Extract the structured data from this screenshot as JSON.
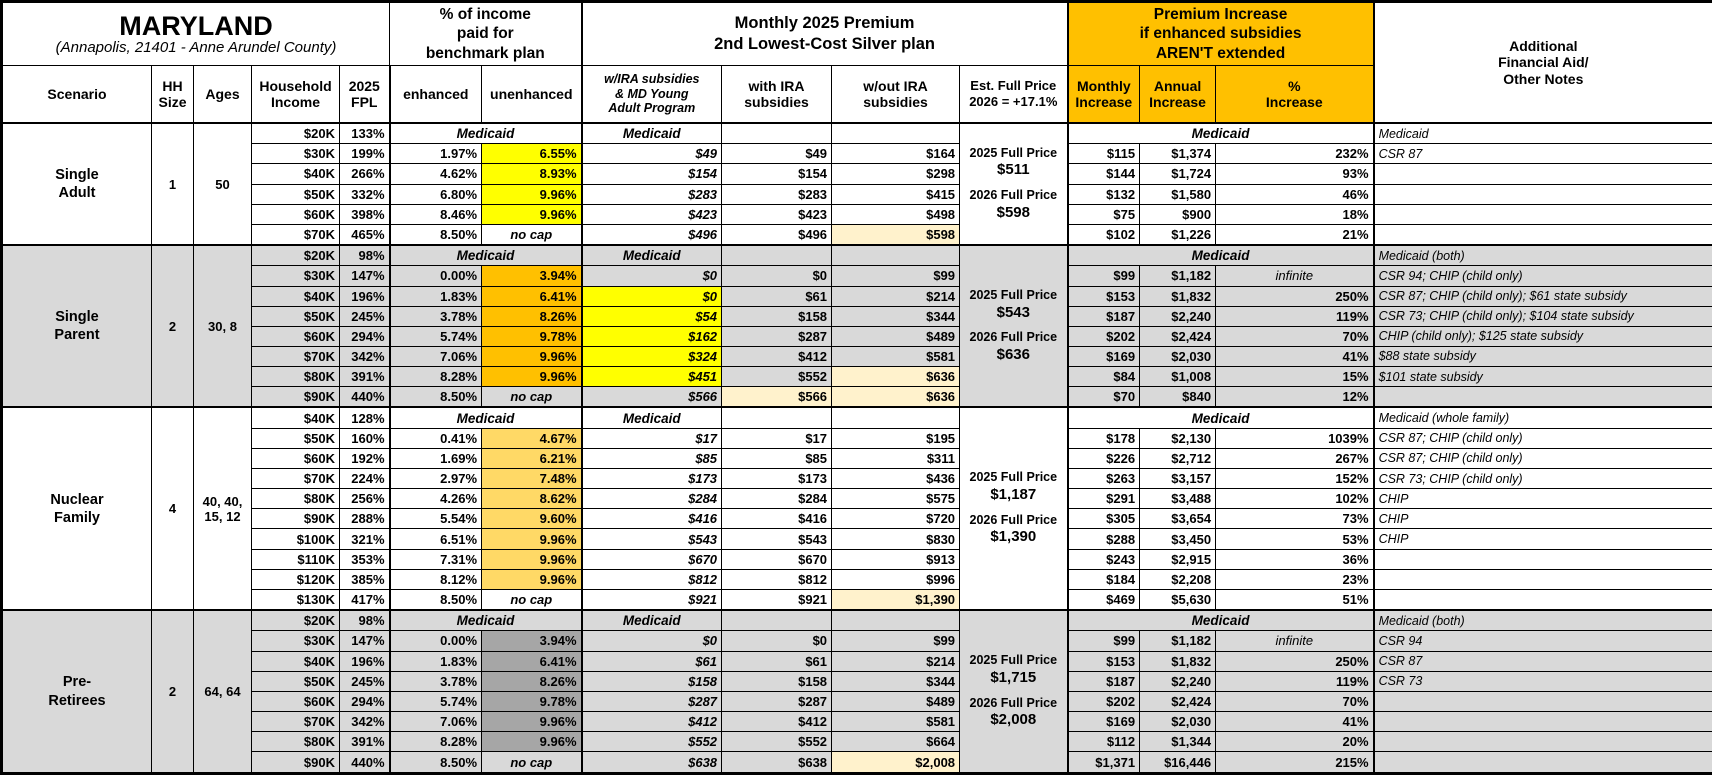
{
  "header": {
    "title": "MARYLAND",
    "subtitle": "(Annapolis, 21401 - Anne Arundel County)",
    "group_income_pct": "% of income\npaid for\nbenchmark plan",
    "group_premium": "Monthly 2025 Premium\n2nd Lowest-Cost Silver plan",
    "group_increase": "Premium Increase\nif enhanced subsidies\nAREN'T extended",
    "group_notes": "Additional\nFinancial Aid/\nOther Notes"
  },
  "columns": {
    "scenario": "Scenario",
    "hh_size": "HH\nSize",
    "ages": "Ages",
    "income": "Household\nIncome",
    "fpl": "2025\nFPL",
    "enhanced": "enhanced",
    "unenhanced": "unenhanced",
    "wira": "w/IRA subsidies\n& MD Young\nAdult Program",
    "withira": "with IRA\nsubsidies",
    "woutira": "w/out IRA\nsubsidies",
    "est": "Est. Full Price\n2026 = +17.1%",
    "monthly": "Monthly\nIncrease",
    "annual": "Annual\nIncrease",
    "pct": "%\nIncrease"
  },
  "labels": {
    "medicaid": "Medicaid"
  },
  "colors": {
    "header_orange": "#FFC000",
    "row_gray": "#D9D9D9",
    "yellow": "#FFFF00",
    "gold": "#FFC000",
    "light_gold": "#FFD966",
    "dark_gray": "#A6A6A6",
    "beige": "#FFF2CC"
  },
  "blocks": [
    {
      "scenario": "Single\nAdult",
      "hh_size": "1",
      "ages": "50",
      "gray": false,
      "unenhanced_color": "#FFFF00",
      "full_price": {
        "label_2025": "2025 Full Price",
        "price_2025": "$511",
        "label_2026": "2026 Full Price",
        "price_2026": "$598"
      },
      "rows": [
        {
          "income": "$20K",
          "fpl": "133%",
          "medicaid": true,
          "note": "Medicaid"
        },
        {
          "income": "$30K",
          "fpl": "199%",
          "enhanced": "1.97%",
          "unenhanced": "6.55%",
          "u_hl": true,
          "wira": "$49",
          "withira": "$49",
          "woutira": "$164",
          "monthly": "$115",
          "annual": "$1,374",
          "pct": "232%",
          "note": "CSR 87"
        },
        {
          "income": "$40K",
          "fpl": "266%",
          "enhanced": "4.62%",
          "unenhanced": "8.93%",
          "u_hl": true,
          "wira": "$154",
          "withira": "$154",
          "woutira": "$298",
          "monthly": "$144",
          "annual": "$1,724",
          "pct": "93%",
          "note": ""
        },
        {
          "income": "$50K",
          "fpl": "332%",
          "enhanced": "6.80%",
          "unenhanced": "9.96%",
          "u_hl": true,
          "wira": "$283",
          "withira": "$283",
          "woutira": "$415",
          "monthly": "$132",
          "annual": "$1,580",
          "pct": "46%",
          "note": ""
        },
        {
          "income": "$60K",
          "fpl": "398%",
          "enhanced": "8.46%",
          "unenhanced": "9.96%",
          "u_hl": true,
          "wira": "$423",
          "withira": "$423",
          "woutira": "$498",
          "monthly": "$75",
          "annual": "$900",
          "pct": "18%",
          "note": ""
        },
        {
          "income": "$70K",
          "fpl": "465%",
          "enhanced": "8.50%",
          "unenhanced": "no cap",
          "wira": "$496",
          "withira": "$496",
          "woutira": "$598",
          "woutira_hl": true,
          "monthly": "$102",
          "annual": "$1,226",
          "pct": "21%",
          "note": ""
        }
      ]
    },
    {
      "scenario": "Single\nParent",
      "hh_size": "2",
      "ages": "30, 8",
      "gray": true,
      "unenhanced_color": "#FFC000",
      "full_price": {
        "label_2025": "2025 Full Price",
        "price_2025": "$543",
        "label_2026": "2026 Full Price",
        "price_2026": "$636"
      },
      "rows": [
        {
          "income": "$20K",
          "fpl": "98%",
          "medicaid": true,
          "note": "Medicaid (both)"
        },
        {
          "income": "$30K",
          "fpl": "147%",
          "enhanced": "0.00%",
          "unenhanced": "3.94%",
          "u_hl": true,
          "wira": "$0",
          "withira": "$0",
          "woutira": "$99",
          "monthly": "$99",
          "annual": "$1,182",
          "pct": "infinite",
          "note": "CSR 94; CHIP (child only)"
        },
        {
          "income": "$40K",
          "fpl": "196%",
          "enhanced": "1.83%",
          "unenhanced": "6.41%",
          "u_hl": true,
          "wira": "$0",
          "wira_hl": true,
          "withira": "$61",
          "woutira": "$214",
          "monthly": "$153",
          "annual": "$1,832",
          "pct": "250%",
          "note": "CSR 87; CHIP (child only); $61 state subsidy"
        },
        {
          "income": "$50K",
          "fpl": "245%",
          "enhanced": "3.78%",
          "unenhanced": "8.26%",
          "u_hl": true,
          "wira": "$54",
          "wira_hl": true,
          "withira": "$158",
          "woutira": "$344",
          "monthly": "$187",
          "annual": "$2,240",
          "pct": "119%",
          "note": "CSR 73; CHIP (child only); $104 state subsidy"
        },
        {
          "income": "$60K",
          "fpl": "294%",
          "enhanced": "5.74%",
          "unenhanced": "9.78%",
          "u_hl": true,
          "wira": "$162",
          "wira_hl": true,
          "withira": "$287",
          "woutira": "$489",
          "monthly": "$202",
          "annual": "$2,424",
          "pct": "70%",
          "note": "CHIP (child only); $125 state subsidy"
        },
        {
          "income": "$70K",
          "fpl": "342%",
          "enhanced": "7.06%",
          "unenhanced": "9.96%",
          "u_hl": true,
          "wira": "$324",
          "wira_hl": true,
          "withira": "$412",
          "woutira": "$581",
          "monthly": "$169",
          "annual": "$2,030",
          "pct": "41%",
          "note": "$88 state subsidy"
        },
        {
          "income": "$80K",
          "fpl": "391%",
          "enhanced": "8.28%",
          "unenhanced": "9.96%",
          "u_hl": true,
          "wira": "$451",
          "wira_hl": true,
          "withira": "$552",
          "woutira": "$636",
          "woutira_hl": true,
          "monthly": "$84",
          "annual": "$1,008",
          "pct": "15%",
          "note": "$101 state subsidy"
        },
        {
          "income": "$90K",
          "fpl": "440%",
          "enhanced": "8.50%",
          "unenhanced": "no cap",
          "wira": "$566",
          "withira": "$566",
          "withira_hl": true,
          "woutira": "$636",
          "woutira_hl": true,
          "monthly": "$70",
          "annual": "$840",
          "pct": "12%",
          "note": ""
        }
      ]
    },
    {
      "scenario": "Nuclear\nFamily",
      "hh_size": "4",
      "ages": "40, 40,\n15, 12",
      "gray": false,
      "unenhanced_color": "#FFD966",
      "full_price": {
        "label_2025": "2025 Full Price",
        "price_2025": "$1,187",
        "label_2026": "2026 Full Price",
        "price_2026": "$1,390"
      },
      "rows": [
        {
          "income": "$40K",
          "fpl": "128%",
          "medicaid": true,
          "note": "Medicaid (whole family)"
        },
        {
          "income": "$50K",
          "fpl": "160%",
          "enhanced": "0.41%",
          "unenhanced": "4.67%",
          "u_hl": true,
          "wira": "$17",
          "withira": "$17",
          "woutira": "$195",
          "monthly": "$178",
          "annual": "$2,130",
          "pct": "1039%",
          "note": "CSR 87; CHIP (child only)"
        },
        {
          "income": "$60K",
          "fpl": "192%",
          "enhanced": "1.69%",
          "unenhanced": "6.21%",
          "u_hl": true,
          "wira": "$85",
          "withira": "$85",
          "woutira": "$311",
          "monthly": "$226",
          "annual": "$2,712",
          "pct": "267%",
          "note": "CSR 87; CHIP (child only)"
        },
        {
          "income": "$70K",
          "fpl": "224%",
          "enhanced": "2.97%",
          "unenhanced": "7.48%",
          "u_hl": true,
          "wira": "$173",
          "withira": "$173",
          "woutira": "$436",
          "monthly": "$263",
          "annual": "$3,157",
          "pct": "152%",
          "note": "CSR 73; CHIP (child only)"
        },
        {
          "income": "$80K",
          "fpl": "256%",
          "enhanced": "4.26%",
          "unenhanced": "8.62%",
          "u_hl": true,
          "wira": "$284",
          "withira": "$284",
          "woutira": "$575",
          "monthly": "$291",
          "annual": "$3,488",
          "pct": "102%",
          "note": "CHIP"
        },
        {
          "income": "$90K",
          "fpl": "288%",
          "enhanced": "5.54%",
          "unenhanced": "9.60%",
          "u_hl": true,
          "wira": "$416",
          "withira": "$416",
          "woutira": "$720",
          "monthly": "$305",
          "annual": "$3,654",
          "pct": "73%",
          "note": "CHIP"
        },
        {
          "income": "$100K",
          "fpl": "321%",
          "enhanced": "6.51%",
          "unenhanced": "9.96%",
          "u_hl": true,
          "wira": "$543",
          "withira": "$543",
          "woutira": "$830",
          "monthly": "$288",
          "annual": "$3,450",
          "pct": "53%",
          "note": "CHIP"
        },
        {
          "income": "$110K",
          "fpl": "353%",
          "enhanced": "7.31%",
          "unenhanced": "9.96%",
          "u_hl": true,
          "wira": "$670",
          "withira": "$670",
          "woutira": "$913",
          "monthly": "$243",
          "annual": "$2,915",
          "pct": "36%",
          "note": ""
        },
        {
          "income": "$120K",
          "fpl": "385%",
          "enhanced": "8.12%",
          "unenhanced": "9.96%",
          "u_hl": true,
          "wira": "$812",
          "withira": "$812",
          "woutira": "$996",
          "monthly": "$184",
          "annual": "$2,208",
          "pct": "23%",
          "note": ""
        },
        {
          "income": "$130K",
          "fpl": "417%",
          "enhanced": "8.50%",
          "unenhanced": "no cap",
          "wira": "$921",
          "withira": "$921",
          "woutira": "$1,390",
          "woutira_hl": true,
          "monthly": "$469",
          "annual": "$5,630",
          "pct": "51%",
          "note": ""
        }
      ]
    },
    {
      "scenario": "Pre-\nRetirees",
      "hh_size": "2",
      "ages": "64, 64",
      "gray": true,
      "unenhanced_color": "#A6A6A6",
      "full_price": {
        "label_2025": "2025 Full Price",
        "price_2025": "$1,715",
        "label_2026": "2026 Full Price",
        "price_2026": "$2,008"
      },
      "rows": [
        {
          "income": "$20K",
          "fpl": "98%",
          "medicaid": true,
          "note": "Medicaid (both)"
        },
        {
          "income": "$30K",
          "fpl": "147%",
          "enhanced": "0.00%",
          "unenhanced": "3.94%",
          "u_hl": true,
          "wira": "$0",
          "withira": "$0",
          "woutira": "$99",
          "monthly": "$99",
          "annual": "$1,182",
          "pct": "infinite",
          "note": "CSR 94"
        },
        {
          "income": "$40K",
          "fpl": "196%",
          "enhanced": "1.83%",
          "unenhanced": "6.41%",
          "u_hl": true,
          "wira": "$61",
          "withira": "$61",
          "woutira": "$214",
          "monthly": "$153",
          "annual": "$1,832",
          "pct": "250%",
          "note": "CSR 87"
        },
        {
          "income": "$50K",
          "fpl": "245%",
          "enhanced": "3.78%",
          "unenhanced": "8.26%",
          "u_hl": true,
          "wira": "$158",
          "withira": "$158",
          "woutira": "$344",
          "monthly": "$187",
          "annual": "$2,240",
          "pct": "119%",
          "note": "CSR 73"
        },
        {
          "income": "$60K",
          "fpl": "294%",
          "enhanced": "5.74%",
          "unenhanced": "9.78%",
          "u_hl": true,
          "wira": "$287",
          "withira": "$287",
          "woutira": "$489",
          "monthly": "$202",
          "annual": "$2,424",
          "pct": "70%",
          "note": ""
        },
        {
          "income": "$70K",
          "fpl": "342%",
          "enhanced": "7.06%",
          "unenhanced": "9.96%",
          "u_hl": true,
          "wira": "$412",
          "withira": "$412",
          "woutira": "$581",
          "monthly": "$169",
          "annual": "$2,030",
          "pct": "41%",
          "note": ""
        },
        {
          "income": "$80K",
          "fpl": "391%",
          "enhanced": "8.28%",
          "unenhanced": "9.96%",
          "u_hl": true,
          "wira": "$552",
          "withira": "$552",
          "woutira": "$664",
          "monthly": "$112",
          "annual": "$1,344",
          "pct": "20%",
          "note": ""
        },
        {
          "income": "$90K",
          "fpl": "440%",
          "enhanced": "8.50%",
          "unenhanced": "no cap",
          "wira": "$638",
          "withira": "$638",
          "woutira": "$2,008",
          "woutira_hl": true,
          "monthly": "$1,371",
          "annual": "$16,446",
          "pct": "215%",
          "note": ""
        }
      ]
    }
  ]
}
